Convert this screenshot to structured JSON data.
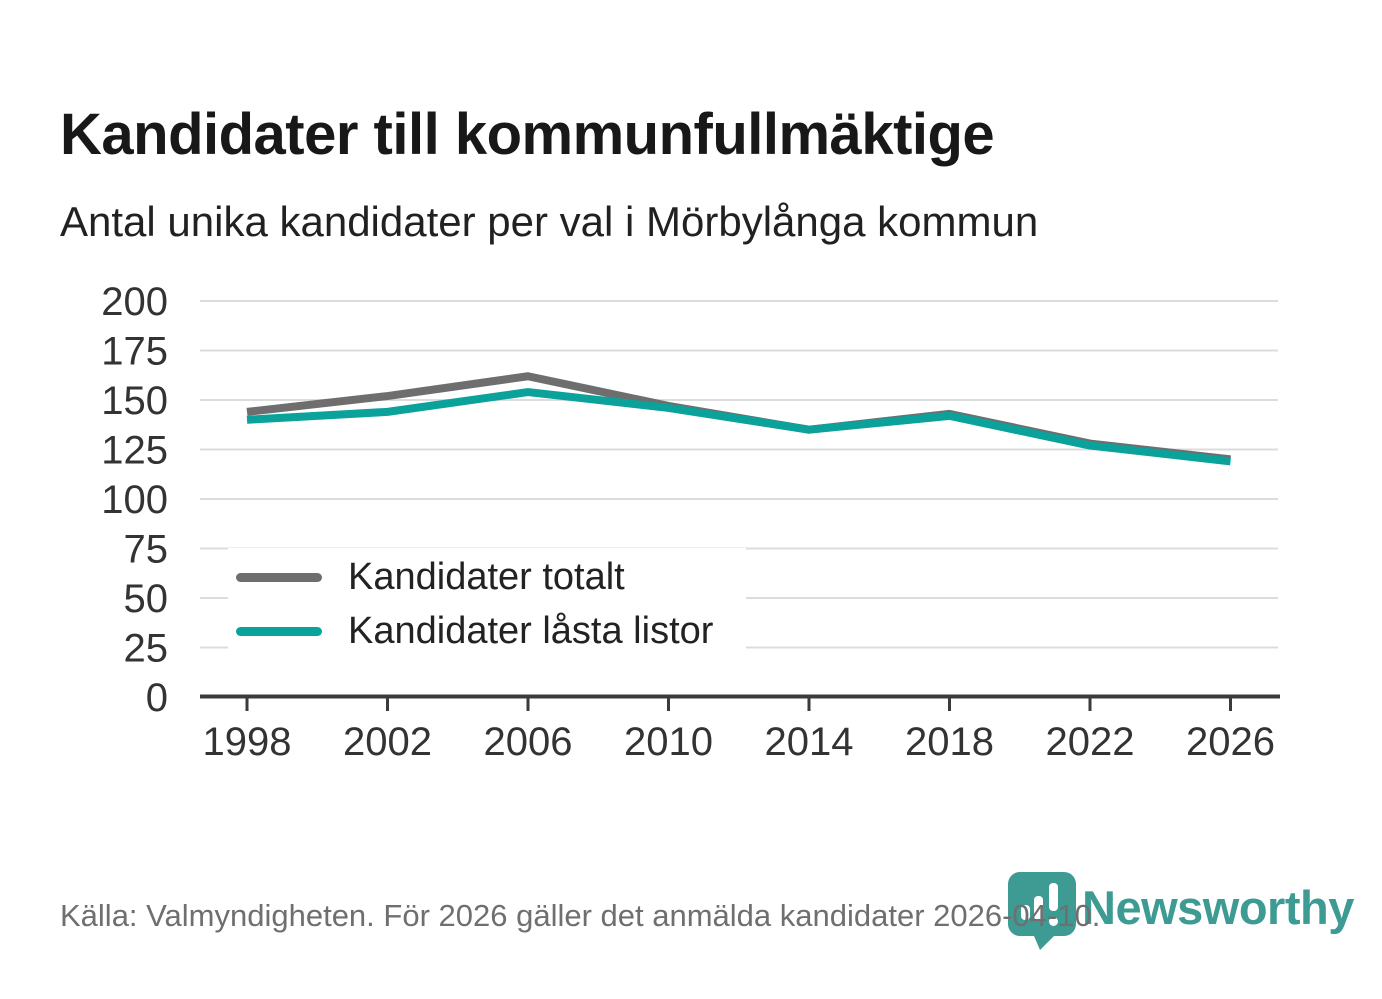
{
  "header": {
    "title": "Kandidater till kommunfullmäktige",
    "subtitle": "Antal unika kandidater per val i Mörbylånga kommun"
  },
  "footer": {
    "source": "Källa: Valmyndigheten. För 2026 gäller det anmälda kandidater 2026-04-10.",
    "brand": "Newsworthy"
  },
  "colors": {
    "total_line": "#6e6e6e",
    "locked_line": "#0aa29a",
    "gridline": "#dcdcdc",
    "axis": "#3b3b3b",
    "tick_label": "#333333",
    "brand_teal": "#3d9b93"
  },
  "chart_data": {
    "type": "line",
    "x": [
      1998,
      2002,
      2006,
      2010,
      2014,
      2018,
      2022,
      2026
    ],
    "series": [
      {
        "name": "Kandidater totalt",
        "color": "#6e6e6e",
        "values": [
          144,
          152,
          162,
          147,
          135,
          143,
          128,
          120
        ]
      },
      {
        "name": "Kandidater låsta listor",
        "color": "#0aa29a",
        "values": [
          140,
          144,
          154,
          146,
          135,
          142,
          127,
          119
        ]
      }
    ],
    "title": "Kandidater till kommunfullmäktige",
    "subtitle": "Antal unika kandidater per val i Mörbylånga kommun",
    "xlabel": "",
    "ylabel": "",
    "ylim": [
      0,
      200
    ],
    "yticks": [
      0,
      25,
      50,
      75,
      100,
      125,
      150,
      175,
      200
    ],
    "grid": "horizontal",
    "legend_position": "inside-left"
  }
}
